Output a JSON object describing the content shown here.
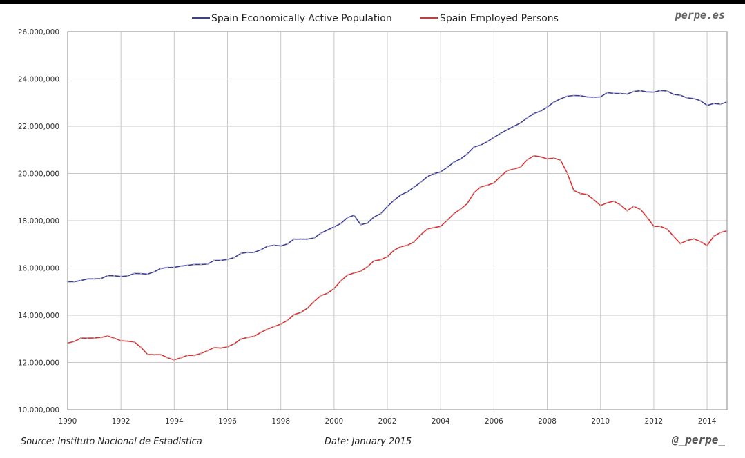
{
  "header": {
    "brand": "perpe.es",
    "handle": "@_perpe_"
  },
  "footer": {
    "source": "Source: Instituto Nacional de Estadistica",
    "date": "Date: January 2015"
  },
  "chart_data": {
    "type": "line",
    "title": "",
    "xlabel": "",
    "ylabel": "",
    "xlim": [
      1990,
      2014.75
    ],
    "ylim": [
      10000000,
      26000000
    ],
    "grid": true,
    "legend_position": "top",
    "x_ticks": [
      1990,
      1992,
      1994,
      1996,
      1998,
      2000,
      2002,
      2004,
      2006,
      2008,
      2010,
      2012,
      2014
    ],
    "x_tick_labels": [
      "1990",
      "1992",
      "1994",
      "1996",
      "1998",
      "2000",
      "2002",
      "2004",
      "2006",
      "2008",
      "2010",
      "2012",
      "2014"
    ],
    "y_ticks": [
      10000000,
      12000000,
      14000000,
      16000000,
      18000000,
      20000000,
      22000000,
      24000000,
      26000000
    ],
    "y_tick_labels": [
      "10,000,000",
      "12,000,000",
      "14,000,000",
      "16,000,000",
      "18,000,000",
      "20,000,000",
      "22,000,000",
      "24,000,000",
      "26,000,000"
    ],
    "x": [
      1990.0,
      1990.25,
      1990.5,
      1990.75,
      1991.0,
      1991.25,
      1991.5,
      1991.75,
      1992.0,
      1992.25,
      1992.5,
      1992.75,
      1993.0,
      1993.25,
      1993.5,
      1993.75,
      1994.0,
      1994.25,
      1994.5,
      1994.75,
      1995.0,
      1995.25,
      1995.5,
      1995.75,
      1996.0,
      1996.25,
      1996.5,
      1996.75,
      1997.0,
      1997.25,
      1997.5,
      1997.75,
      1998.0,
      1998.25,
      1998.5,
      1998.75,
      1999.0,
      1999.25,
      1999.5,
      1999.75,
      2000.0,
      2000.25,
      2000.5,
      2000.75,
      2001.0,
      2001.25,
      2001.5,
      2001.75,
      2002.0,
      2002.25,
      2002.5,
      2002.75,
      2003.0,
      2003.25,
      2003.5,
      2003.75,
      2004.0,
      2004.25,
      2004.5,
      2004.75,
      2005.0,
      2005.25,
      2005.5,
      2005.75,
      2006.0,
      2006.25,
      2006.5,
      2006.75,
      2007.0,
      2007.25,
      2007.5,
      2007.75,
      2008.0,
      2008.25,
      2008.5,
      2008.75,
      2009.0,
      2009.25,
      2009.5,
      2009.75,
      2010.0,
      2010.25,
      2010.5,
      2010.75,
      2011.0,
      2011.25,
      2011.5,
      2011.75,
      2012.0,
      2012.25,
      2012.5,
      2012.75,
      2013.0,
      2013.25,
      2013.5,
      2013.75,
      2014.0,
      2014.25,
      2014.5,
      2014.75
    ],
    "series": [
      {
        "name": "Spain Economically Active Population",
        "color": "#3a3f9c",
        "values": [
          15420000,
          15420000,
          15470000,
          15540000,
          15540000,
          15550000,
          15680000,
          15670000,
          15640000,
          15660000,
          15770000,
          15760000,
          15740000,
          15840000,
          15980000,
          16020000,
          16030000,
          16080000,
          16110000,
          16150000,
          16150000,
          16160000,
          16320000,
          16320000,
          16360000,
          16440000,
          16620000,
          16660000,
          16660000,
          16770000,
          16920000,
          16960000,
          16930000,
          17020000,
          17220000,
          17220000,
          17220000,
          17270000,
          17470000,
          17610000,
          17740000,
          17880000,
          18130000,
          18230000,
          17830000,
          17900000,
          18160000,
          18300000,
          18600000,
          18870000,
          19090000,
          19220000,
          19420000,
          19630000,
          19870000,
          19990000,
          20070000,
          20260000,
          20480000,
          20620000,
          20830000,
          21120000,
          21200000,
          21350000,
          21530000,
          21700000,
          21850000,
          22000000,
          22140000,
          22360000,
          22540000,
          22640000,
          22810000,
          23020000,
          23160000,
          23270000,
          23300000,
          23290000,
          23240000,
          23230000,
          23240000,
          23420000,
          23390000,
          23380000,
          23360000,
          23470000,
          23500000,
          23450000,
          23440000,
          23510000,
          23490000,
          23340000,
          23310000,
          23200000,
          23170000,
          23080000,
          22880000,
          22960000,
          22930000,
          23030000
        ]
      },
      {
        "name": "Spain Employed Persons",
        "color": "#e03030",
        "values": [
          12820000,
          12890000,
          13030000,
          13030000,
          13040000,
          13060000,
          13120000,
          13030000,
          12920000,
          12900000,
          12870000,
          12640000,
          12340000,
          12330000,
          12330000,
          12200000,
          12110000,
          12200000,
          12300000,
          12300000,
          12380000,
          12500000,
          12630000,
          12610000,
          12660000,
          12790000,
          12990000,
          13060000,
          13110000,
          13270000,
          13410000,
          13520000,
          13620000,
          13780000,
          14030000,
          14110000,
          14300000,
          14580000,
          14830000,
          14930000,
          15130000,
          15450000,
          15700000,
          15790000,
          15860000,
          16050000,
          16300000,
          16350000,
          16480000,
          16750000,
          16900000,
          16960000,
          17100000,
          17400000,
          17650000,
          17710000,
          17760000,
          18020000,
          18300000,
          18490000,
          18730000,
          19180000,
          19430000,
          19500000,
          19600000,
          19880000,
          20120000,
          20190000,
          20270000,
          20580000,
          20750000,
          20710000,
          20620000,
          20650000,
          20560000,
          20020000,
          19280000,
          19150000,
          19110000,
          18890000,
          18640000,
          18760000,
          18820000,
          18670000,
          18430000,
          18610000,
          18480000,
          18150000,
          17760000,
          17760000,
          17650000,
          17330000,
          17030000,
          17160000,
          17230000,
          17120000,
          16950000,
          17340000,
          17500000,
          17570000
        ]
      }
    ]
  }
}
